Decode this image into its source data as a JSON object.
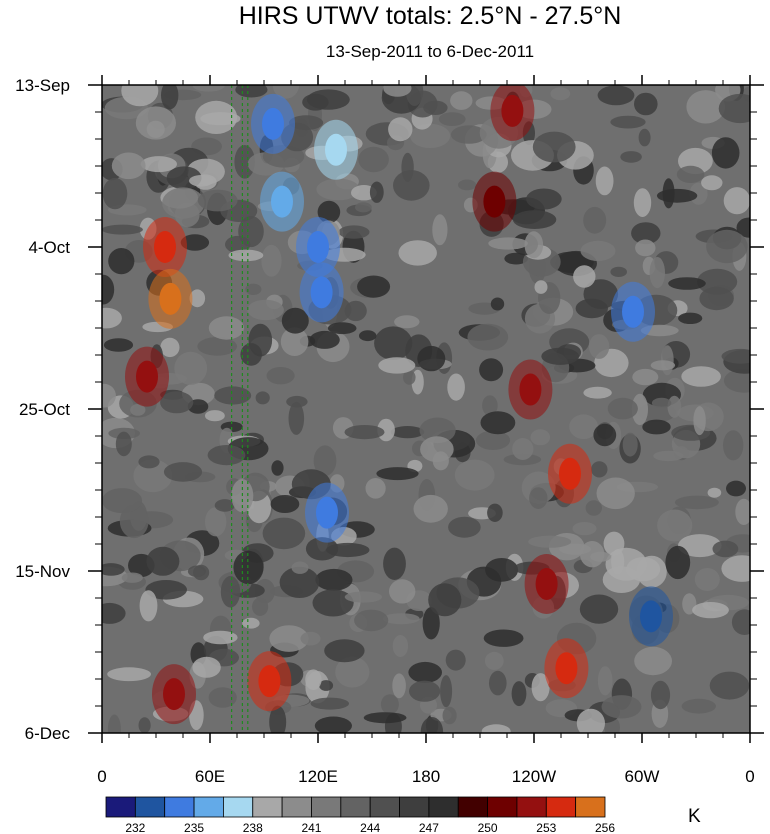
{
  "title": "HIRS UTWV totals: 2.5°N - 27.5°N",
  "subtitle": "13-Sep-2011 to 6-Dec-2011",
  "unit": "K",
  "chart_data": {
    "type": "heatmap",
    "title": "HIRS UTWV totals: 2.5°N - 27.5°N",
    "subtitle": "13-Sep-2011 to 6-Dec-2011",
    "x_ticks": [
      "0",
      "60E",
      "120E",
      "180",
      "120W",
      "60W",
      "0"
    ],
    "x_range": [
      0,
      360
    ],
    "y_ticks": [
      "13-Sep",
      "4-Oct",
      "25-Oct",
      "15-Nov",
      "6-Dec"
    ],
    "y_range": [
      "13-Sep-2011",
      "6-Dec-2011"
    ],
    "colorbar": {
      "unit": "K",
      "labels": [
        "232",
        "235",
        "238",
        "241",
        "244",
        "247",
        "250",
        "253",
        "256"
      ],
      "colors": [
        "#1a1a7a",
        "#1f55a0",
        "#3f7be0",
        "#63aae8",
        "#a6d8f0",
        "#a8a8a8",
        "#8c8c8c",
        "#797979",
        "#636363",
        "#505050",
        "#3e3e3e",
        "#2e2e2e",
        "#420000",
        "#6e0000",
        "#941010",
        "#d62a10",
        "#d8701c"
      ]
    },
    "features": [
      {
        "lon": 35,
        "t": 0.25,
        "level": "#d62a10"
      },
      {
        "lon": 38,
        "t": 0.33,
        "level": "#d8701c"
      },
      {
        "lon": 25,
        "t": 0.45,
        "level": "#941010"
      },
      {
        "lon": 95,
        "t": 0.06,
        "level": "#3f7be0"
      },
      {
        "lon": 100,
        "t": 0.18,
        "level": "#63aae8"
      },
      {
        "lon": 130,
        "t": 0.1,
        "level": "#a6d8f0"
      },
      {
        "lon": 120,
        "t": 0.25,
        "level": "#3f7be0"
      },
      {
        "lon": 122,
        "t": 0.32,
        "level": "#3f7be0"
      },
      {
        "lon": 238,
        "t": 0.47,
        "level": "#941010"
      },
      {
        "lon": 260,
        "t": 0.6,
        "level": "#d62a10"
      },
      {
        "lon": 228,
        "t": 0.04,
        "level": "#941010"
      },
      {
        "lon": 295,
        "t": 0.35,
        "level": "#3f7be0"
      },
      {
        "lon": 305,
        "t": 0.82,
        "level": "#1f55a0"
      },
      {
        "lon": 258,
        "t": 0.9,
        "level": "#d62a10"
      },
      {
        "lon": 93,
        "t": 0.92,
        "level": "#d62a10"
      },
      {
        "lon": 40,
        "t": 0.94,
        "level": "#941010"
      },
      {
        "lon": 125,
        "t": 0.66,
        "level": "#3f7be0"
      },
      {
        "lon": 218,
        "t": 0.18,
        "level": "#6e0000"
      },
      {
        "lon": 247,
        "t": 0.77,
        "level": "#941010"
      }
    ],
    "dashed_lines_lon": [
      72,
      78,
      81
    ]
  }
}
